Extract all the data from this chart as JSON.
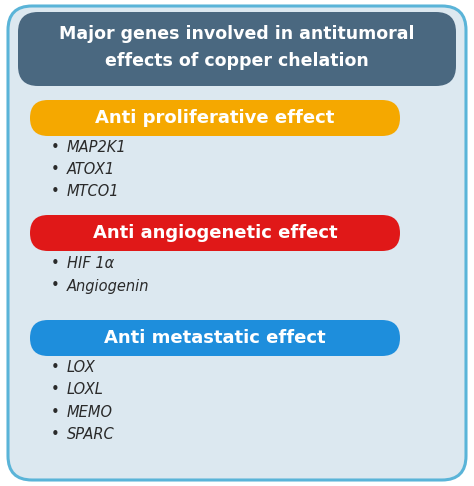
{
  "title_line1": "Major genes involved in antitumoral",
  "title_line2": "effects of copper chelation",
  "title_bg_color": "#4a6880",
  "title_text_color": "#ffffff",
  "outer_bg_color": "#dce8f0",
  "outer_border_color": "#5ab4d8",
  "sections": [
    {
      "label": "Anti proliferative effect",
      "bg_color": "#f5a800",
      "text_color": "#ffffff",
      "items": [
        "MAP2K1",
        "ATOX1",
        "MTCO1"
      ]
    },
    {
      "label": "Anti angiogenetic effect",
      "bg_color": "#e01818",
      "text_color": "#ffffff",
      "items": [
        "HIF 1α",
        "Angiogenin"
      ]
    },
    {
      "label": "Anti metastatic effect",
      "bg_color": "#1e8edc",
      "text_color": "#ffffff",
      "items": [
        "LOX",
        "LOXL",
        "MEMO",
        "SPARC"
      ]
    }
  ],
  "item_text_color": "#2a2a2a",
  "item_fontsize": 10.5,
  "section_fontsize": 13,
  "title_fontsize": 12.5
}
